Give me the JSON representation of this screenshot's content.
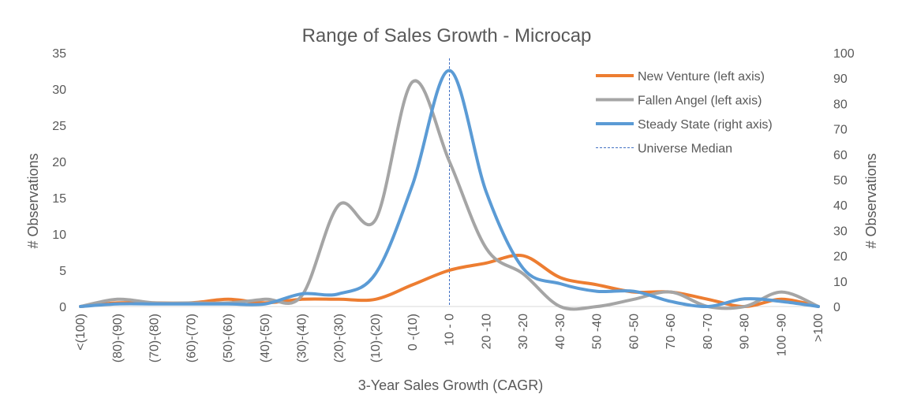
{
  "chart_data": {
    "type": "line",
    "title": "Range of Sales Growth - Microcap",
    "xlabel": "3-Year Sales Growth (CAGR)",
    "ylabel": "# Observations",
    "y2label": "# Observations",
    "ylim": [
      0,
      35
    ],
    "y2lim": [
      0,
      100
    ],
    "yticks": [
      0,
      5,
      10,
      15,
      20,
      25,
      30,
      35
    ],
    "y2ticks": [
      0,
      10,
      20,
      30,
      40,
      50,
      60,
      70,
      80,
      90,
      100
    ],
    "categories": [
      "<(100)",
      "(80)-(90)",
      "(70)-(80)",
      "(60)-(70)",
      "(50)-(60)",
      "(40)-(50)",
      "(30)-(40)",
      "(20)-(30)",
      "(10)-(20)",
      "0 -(10)",
      "10 - 0",
      "20 -10",
      "30 -20",
      "40 -30",
      "50 -40",
      "60 -50",
      "70 -60",
      "80 -70",
      "90 -80",
      "100 -90",
      ">100"
    ],
    "series": [
      {
        "name": "New Venture (left axis)",
        "axis": "left",
        "color": "#ED7D31",
        "values": [
          0,
          0.5,
          0.5,
          0.5,
          1,
          0.5,
          1,
          1,
          1,
          3,
          5,
          6,
          7,
          4,
          3,
          2,
          2,
          1,
          0,
          1,
          0
        ]
      },
      {
        "name": "Fallen Angel (left axis)",
        "axis": "left",
        "color": "#A5A5A5",
        "values": [
          0,
          1,
          0.5,
          0.5,
          0.5,
          1,
          1.5,
          14,
          12,
          31,
          20,
          8,
          4.5,
          0,
          0,
          1,
          2,
          0,
          0,
          2,
          0
        ]
      },
      {
        "name": "Steady State (right axis)",
        "axis": "right",
        "color": "#5B9BD5",
        "values": [
          0,
          1,
          1,
          1,
          1,
          1,
          5,
          5,
          13,
          48,
          93,
          45,
          15,
          9,
          6,
          6,
          2,
          0,
          3,
          2,
          0
        ]
      }
    ],
    "reference_line": {
      "name": "Universe Median",
      "category": "10 - 0",
      "color": "#4472C4",
      "style": "dashed"
    },
    "legend_position": "top-right",
    "grid": false
  }
}
